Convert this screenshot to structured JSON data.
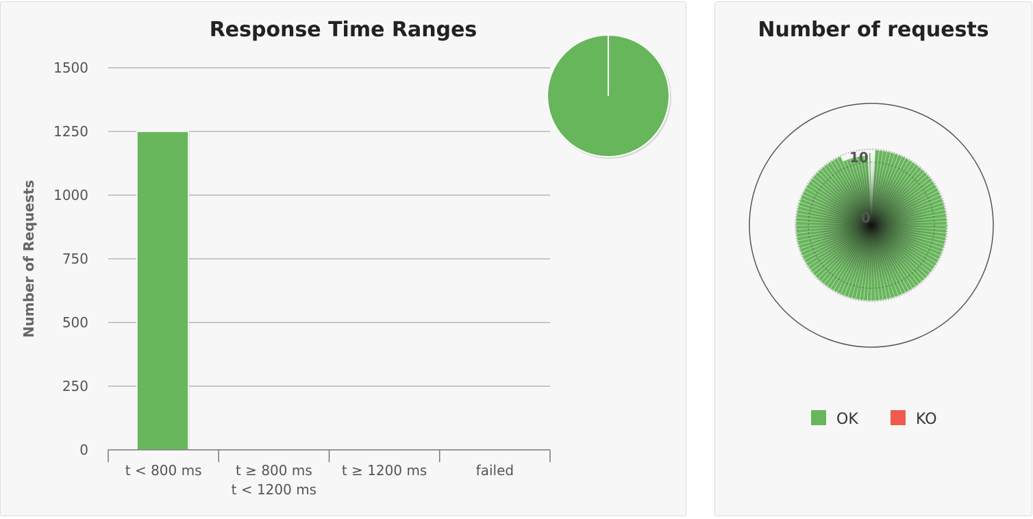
{
  "chart_data": [
    {
      "type": "bar",
      "title": "Response Time Ranges",
      "ylabel": "Number of Requests",
      "xlabel": "",
      "ylim": [
        0,
        1500
      ],
      "yticks": [
        "0",
        "250",
        "500",
        "750",
        "1000",
        "1250",
        "1500"
      ],
      "categories": [
        "t < 800 ms",
        "t ≥ 800 ms\nt < 1200 ms",
        "t ≥ 1200 ms",
        "failed"
      ],
      "values": [
        1250,
        0,
        0,
        0
      ],
      "bar_color": "#68b65c",
      "grid": true,
      "inset_pie": {
        "type": "pie",
        "values": [
          1250,
          0,
          0,
          0
        ],
        "color": "#68b65c"
      }
    },
    {
      "type": "polar-bar",
      "title": "Number of requests",
      "radial_labels": [
        "0",
        "10"
      ],
      "series": [
        {
          "name": "OK",
          "color": "#68b65c"
        },
        {
          "name": "KO",
          "color": "#f15b4f"
        }
      ],
      "legend_position": "bottom"
    }
  ],
  "colors": {
    "ok": "#68b65c",
    "ko": "#f15b4f",
    "grid": "#b5b5b5"
  }
}
